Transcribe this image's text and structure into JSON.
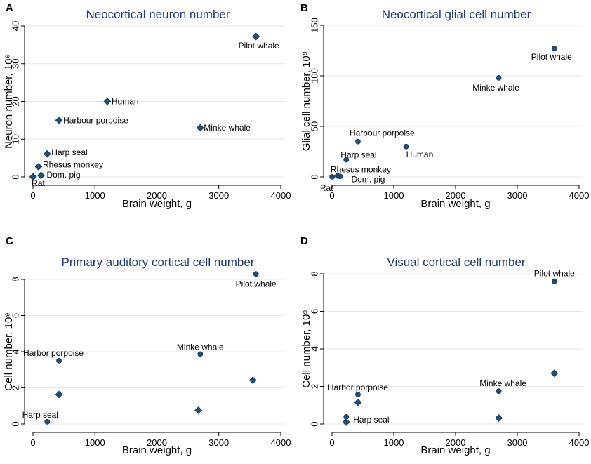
{
  "figure": {
    "marker_color": "#1f4e79",
    "title_color": "#1a3c6e"
  },
  "chart_data": [
    {
      "panel": "A",
      "type": "scatter",
      "title": "Neocortical neuron number",
      "xlabel": "Brain weight, g",
      "ylabel": "Neuron number, 10⁹",
      "xlim": [
        0,
        4000
      ],
      "ylim": [
        0,
        40
      ],
      "xticks": [
        0,
        1000,
        2000,
        3000,
        4000
      ],
      "yticks": [
        0,
        10,
        20,
        30,
        40
      ],
      "grid": "horizontal",
      "series": [
        {
          "marker": "diamond",
          "points": [
            {
              "label": "Rat",
              "x": 2,
              "y": 0.02
            },
            {
              "label": "Dom. pig",
              "x": 130,
              "y": 0.4
            },
            {
              "label": "Rhesus monkey",
              "x": 90,
              "y": 2.7
            },
            {
              "label": "Harp seal",
              "x": 230,
              "y": 6.1
            },
            {
              "label": "Harbour porpoise",
              "x": 420,
              "y": 15
            },
            {
              "label": "Human",
              "x": 1200,
              "y": 20
            },
            {
              "label": "Minke whale",
              "x": 2700,
              "y": 13
            },
            {
              "label": "Pilot whale",
              "x": 3600,
              "y": 37.2
            }
          ]
        }
      ]
    },
    {
      "panel": "B",
      "type": "scatter",
      "title": "Neocortical glial cell number",
      "xlabel": "Brain weight, g",
      "ylabel": "Glial cell number, 10⁹",
      "xlim": [
        0,
        4000
      ],
      "ylim": [
        0,
        150
      ],
      "xticks": [
        0,
        1000,
        2000,
        3000,
        4000
      ],
      "yticks": [
        0,
        50,
        100,
        150
      ],
      "grid": "horizontal",
      "series": [
        {
          "marker": "circle",
          "points": [
            {
              "label": "Rat",
              "x": 2,
              "y": 0.1
            },
            {
              "label": "Rhesus monkey",
              "x": 90,
              "y": 1
            },
            {
              "label": "Dom. pig",
              "x": 130,
              "y": 0.5
            },
            {
              "label": "Harp seal",
              "x": 230,
              "y": 17
            },
            {
              "label": "Harbour porpoise",
              "x": 420,
              "y": 35
            },
            {
              "label": "Human",
              "x": 1200,
              "y": 30
            },
            {
              "label": "Minke whale",
              "x": 2700,
              "y": 98
            },
            {
              "label": "Pilot whale",
              "x": 3600,
              "y": 127
            }
          ]
        }
      ]
    },
    {
      "panel": "C",
      "type": "scatter",
      "title": "Primary auditory cortical cell number",
      "xlabel": "Brain weight, g",
      "ylabel": "Cell number, 10⁹",
      "xlim": [
        0,
        4000
      ],
      "ylim": [
        0,
        8
      ],
      "xticks": [
        0,
        1000,
        2000,
        3000,
        4000
      ],
      "yticks": [
        0,
        2,
        4,
        6,
        8
      ],
      "grid": "horizontal",
      "series": [
        {
          "name": "circles",
          "marker": "circle",
          "points": [
            {
              "label": "Harp seal",
              "x": 230,
              "y": 0.12
            },
            {
              "label": "Harbor porpoise",
              "x": 420,
              "y": 3.5
            },
            {
              "label": "Minke whale",
              "x": 2700,
              "y": 3.87
            },
            {
              "label": "Pilot whale",
              "x": 3600,
              "y": 8.3
            }
          ]
        },
        {
          "name": "diamonds",
          "marker": "diamond",
          "points": [
            {
              "x": 420,
              "y": 1.63
            },
            {
              "x": 2670,
              "y": 0.76
            },
            {
              "x": 3550,
              "y": 2.42
            }
          ]
        }
      ]
    },
    {
      "panel": "D",
      "type": "scatter",
      "title": "Visual cortical cell number",
      "xlabel": "Brain weight, g",
      "ylabel": "Cell number, 10⁹",
      "xlim": [
        0,
        4000
      ],
      "ylim": [
        0,
        8
      ],
      "xticks": [
        0,
        1000,
        2000,
        3000,
        4000
      ],
      "yticks": [
        0,
        2,
        4,
        6,
        8
      ],
      "grid": "horizontal",
      "series": [
        {
          "name": "circles",
          "marker": "circle",
          "points": [
            {
              "label": "Harp seal",
              "x": 230,
              "y": 0.38
            },
            {
              "label": "Harbor porpoise",
              "x": 420,
              "y": 1.57
            },
            {
              "label": "Minke whale",
              "x": 2700,
              "y": 1.75
            },
            {
              "label": "Pilot whale",
              "x": 3600,
              "y": 7.6
            }
          ]
        },
        {
          "name": "diamonds",
          "marker": "diamond",
          "points": [
            {
              "x": 230,
              "y": 0.1
            },
            {
              "x": 420,
              "y": 1.15
            },
            {
              "x": 2700,
              "y": 0.32
            },
            {
              "x": 3600,
              "y": 2.7
            }
          ]
        }
      ]
    }
  ]
}
